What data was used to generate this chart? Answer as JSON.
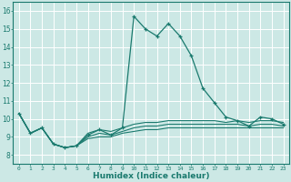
{
  "xlabel": "Humidex (Indice chaleur)",
  "xlim": [
    -0.5,
    23.5
  ],
  "ylim": [
    7.5,
    16.5
  ],
  "xticks": [
    0,
    1,
    2,
    3,
    4,
    5,
    6,
    7,
    8,
    9,
    10,
    11,
    12,
    13,
    14,
    15,
    16,
    17,
    18,
    19,
    20,
    21,
    22,
    23
  ],
  "yticks": [
    8,
    9,
    10,
    11,
    12,
    13,
    14,
    15,
    16
  ],
  "bg_color": "#cce8e5",
  "line_color": "#1a7a6e",
  "grid_color": "#ffffff",
  "x": [
    0,
    1,
    2,
    3,
    4,
    5,
    6,
    7,
    8,
    9,
    10,
    11,
    12,
    13,
    14,
    15,
    16,
    17,
    18,
    19,
    20,
    21,
    22,
    23
  ],
  "y_main": [
    10.3,
    9.2,
    9.5,
    8.6,
    8.4,
    8.5,
    9.1,
    9.4,
    9.1,
    9.5,
    15.7,
    15.0,
    14.6,
    15.3,
    14.6,
    13.5,
    11.7,
    10.9,
    10.1,
    9.9,
    9.6,
    10.1,
    10.0,
    9.7
  ],
  "y_line1": [
    10.3,
    9.2,
    9.5,
    8.6,
    8.4,
    8.5,
    8.9,
    9.0,
    9.0,
    9.2,
    9.3,
    9.4,
    9.4,
    9.5,
    9.5,
    9.5,
    9.5,
    9.5,
    9.5,
    9.5,
    9.5,
    9.5,
    9.5,
    9.5
  ],
  "y_line2": [
    10.3,
    9.2,
    9.5,
    8.6,
    8.4,
    8.5,
    9.0,
    9.2,
    9.1,
    9.3,
    9.5,
    9.6,
    9.6,
    9.7,
    9.7,
    9.7,
    9.7,
    9.7,
    9.7,
    9.7,
    9.6,
    9.7,
    9.7,
    9.6
  ],
  "y_line3": [
    10.3,
    9.2,
    9.5,
    8.6,
    8.4,
    8.5,
    9.2,
    9.4,
    9.3,
    9.5,
    9.7,
    9.8,
    9.8,
    9.9,
    9.9,
    9.9,
    9.9,
    9.9,
    9.8,
    9.9,
    9.8,
    9.9,
    9.9,
    9.8
  ]
}
